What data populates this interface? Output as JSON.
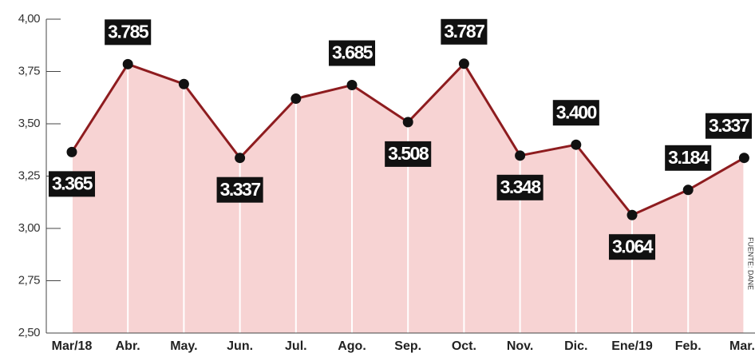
{
  "chart_data": {
    "type": "line",
    "categories": [
      "Mar/18",
      "Abr.",
      "May.",
      "Jun.",
      "Jul.",
      "Ago.",
      "Sep.",
      "Oct.",
      "Nov.",
      "Dic.",
      "Ene/19",
      "Feb.",
      "Mar."
    ],
    "values": [
      3.365,
      3.785,
      3.69,
      3.337,
      3.62,
      3.685,
      3.508,
      3.787,
      3.348,
      3.4,
      3.064,
      3.184,
      3.337
    ],
    "value_labels": [
      "3.365",
      "3.785",
      null,
      "3.337",
      null,
      "3.685",
      "3.508",
      "3.787",
      "3.348",
      "3.400",
      "3.064",
      "3.184",
      "3.337"
    ],
    "color": "#8e1c1f",
    "area_color": "#f7d3d3",
    "ylim": [
      2.5,
      4.0
    ],
    "yticks": [
      {
        "value": 2.5,
        "label": "2,50"
      },
      {
        "value": 2.75,
        "label": "2,75"
      },
      {
        "value": 3.0,
        "label": "3,00"
      },
      {
        "value": 3.25,
        "label": "3,25"
      },
      {
        "value": 3.5,
        "label": "3,50"
      },
      {
        "value": 3.75,
        "label": "3,75"
      },
      {
        "value": 4.0,
        "label": "4,00"
      }
    ],
    "source": "FUENTE: DANE"
  }
}
